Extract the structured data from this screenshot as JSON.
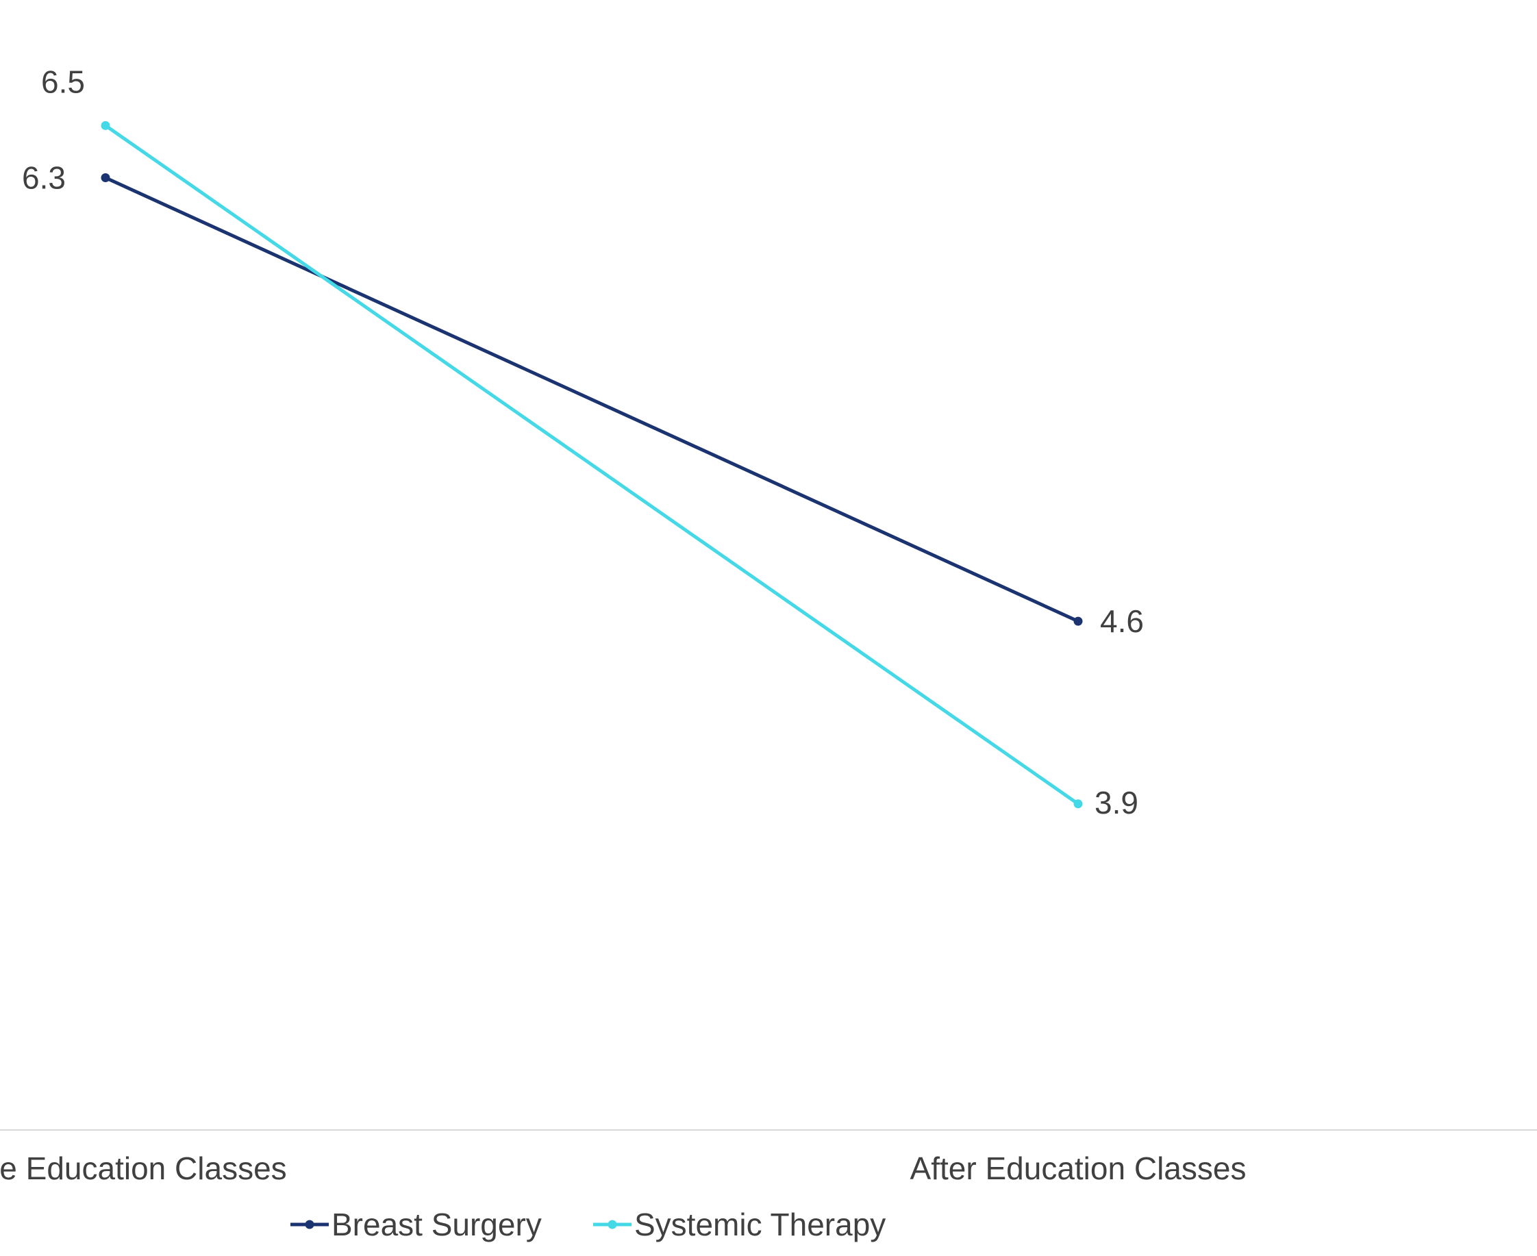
{
  "chart_data": {
    "type": "line",
    "categories": [
      "Before Education Classes",
      "After Education Classes"
    ],
    "series": [
      {
        "name": "Breast Surgery",
        "values": [
          6.3,
          4.6
        ],
        "color": "#1b3370"
      },
      {
        "name": "Systemic Therapy",
        "values": [
          6.5,
          3.9
        ],
        "color": "#45d9e8"
      }
    ],
    "data_labels": [
      [
        "6.3",
        "4.6"
      ],
      [
        "6.5",
        "3.9"
      ]
    ],
    "title": "",
    "xlabel": "",
    "ylabel": "",
    "ylim": [
      2.65,
      6.85
    ],
    "grid": false,
    "legend_position": "bottom",
    "axis_color": "#d9d9d9",
    "text_color": "#404040"
  }
}
